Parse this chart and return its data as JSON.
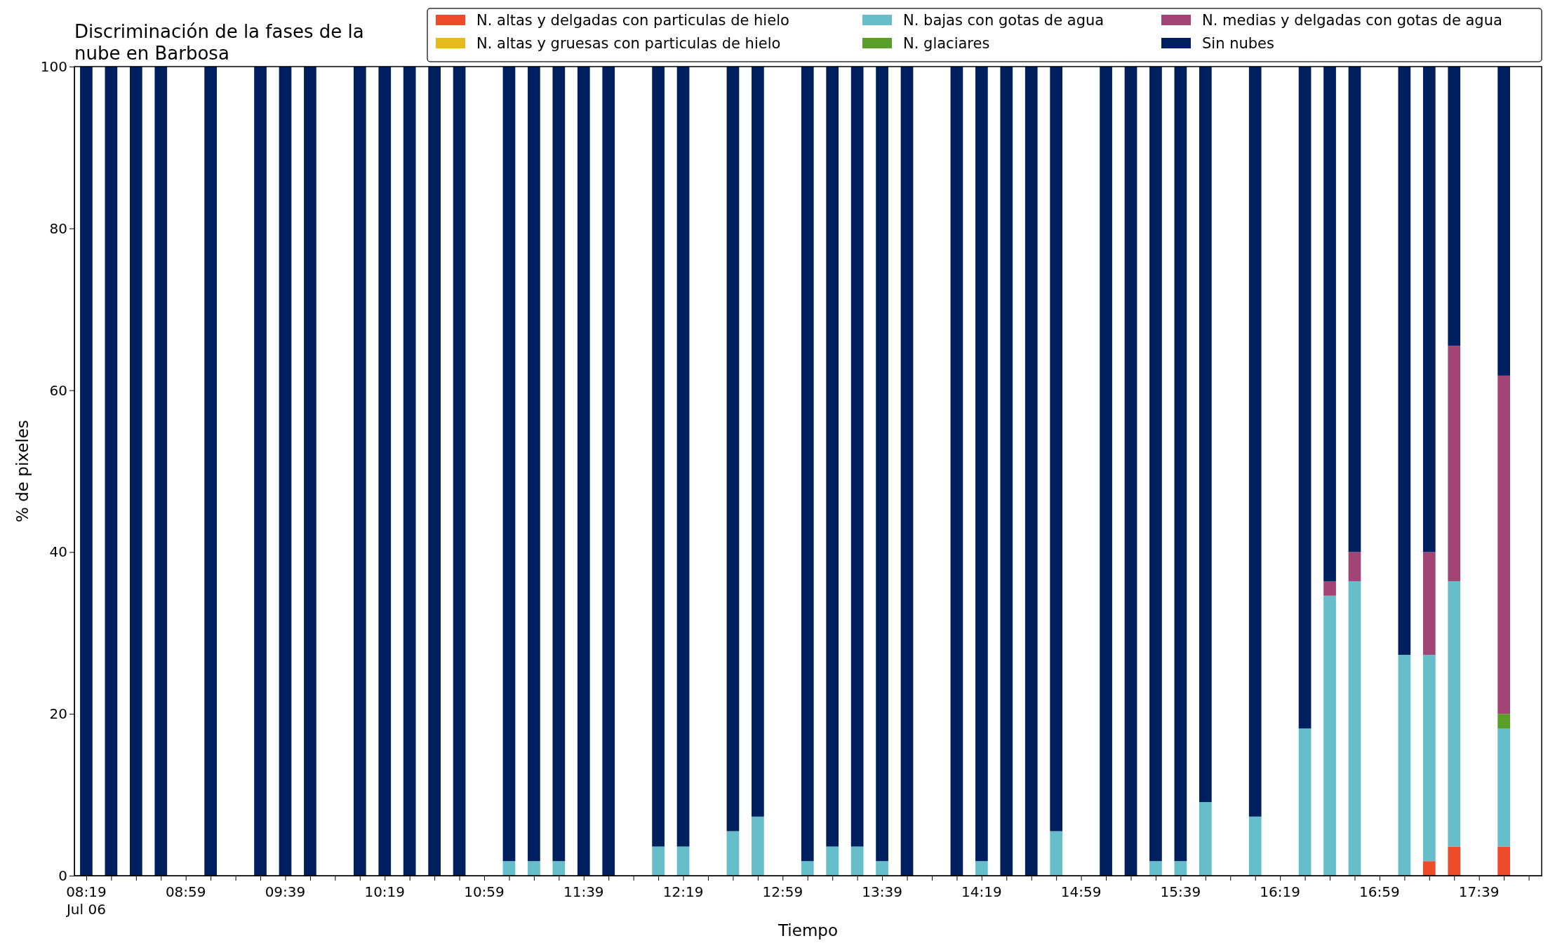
{
  "chart_data": {
    "type": "bar",
    "stacked": true,
    "title": "Discriminación de la fases de la\nnube en Barbosa",
    "xlabel": "Tiempo",
    "ylabel": "% de pixeles",
    "x": [
      8.3167,
      8.4833,
      8.65,
      8.8167,
      9.15,
      9.4833,
      9.65,
      9.8167,
      10.15,
      10.3167,
      10.4833,
      10.65,
      10.8167,
      11.15,
      11.3167,
      11.4833,
      11.65,
      11.8167,
      12.15,
      12.3167,
      12.65,
      12.8167,
      13.15,
      13.3167,
      13.4833,
      13.65,
      13.8167,
      14.15,
      14.3167,
      14.4833,
      14.65,
      14.8167,
      15.15,
      15.3167,
      15.4833,
      15.65,
      15.8167,
      16.15,
      16.4833,
      16.65,
      16.8167,
      17.15,
      17.3167,
      17.4833,
      17.8167
    ],
    "series": [
      {
        "name": "N. altas y delgadas con particulas de hielo",
        "color": "#ee4b2b",
        "values": [
          0,
          0,
          0,
          0,
          0,
          0,
          0,
          0,
          0,
          0,
          0,
          0,
          0,
          0,
          0,
          0,
          0,
          0,
          0,
          0,
          0,
          0,
          0,
          0,
          0,
          0,
          0,
          0,
          0,
          0,
          0,
          0,
          0,
          0,
          0,
          0,
          0,
          0,
          0,
          0,
          0,
          0,
          1.8,
          3.6,
          3.6
        ]
      },
      {
        "name": "N. altas y gruesas con particulas de hielo",
        "color": "#e6b91e",
        "values": [
          0,
          0,
          0,
          0,
          0,
          0,
          0,
          0,
          0,
          0,
          0,
          0,
          0,
          0,
          0,
          0,
          0,
          0,
          0,
          0,
          0,
          0,
          0,
          0,
          0,
          0,
          0,
          0,
          0,
          0,
          0,
          0,
          0,
          0,
          0,
          0,
          0,
          0,
          0,
          0,
          0,
          0,
          0,
          0,
          0
        ]
      },
      {
        "name": "N. bajas con gotas de agua",
        "color": "#65bec9",
        "values": [
          0,
          0,
          0,
          0,
          0,
          0,
          0,
          0,
          0,
          0,
          0,
          0,
          0,
          1.8,
          1.8,
          1.8,
          0,
          0,
          3.6,
          3.6,
          5.5,
          7.3,
          1.8,
          3.6,
          3.6,
          1.8,
          0,
          0,
          1.8,
          0,
          0,
          5.5,
          0,
          0,
          1.8,
          1.8,
          9.1,
          7.3,
          18.2,
          34.6,
          36.4,
          27.3,
          25.5,
          32.8,
          14.6
        ]
      },
      {
        "name": "N. glaciares",
        "color": "#5a9e2a",
        "values": [
          0,
          0,
          0,
          0,
          0,
          0,
          0,
          0,
          0,
          0,
          0,
          0,
          0,
          0,
          0,
          0,
          0,
          0,
          0,
          0,
          0,
          0,
          0,
          0,
          0,
          0,
          0,
          0,
          0,
          0,
          0,
          0,
          0,
          0,
          0,
          0,
          0,
          0,
          0,
          0,
          0,
          0,
          0,
          0,
          1.8
        ]
      },
      {
        "name": "N. medias y delgadas con gotas de agua",
        "color": "#a24576",
        "values": [
          0,
          0,
          0,
          0,
          0,
          0,
          0,
          0,
          0,
          0,
          0,
          0,
          0,
          0,
          0,
          0,
          0,
          0,
          0,
          0,
          0,
          0,
          0,
          0,
          0,
          0,
          0,
          0,
          0,
          0,
          0,
          0,
          0,
          0,
          0,
          0,
          0,
          0,
          0,
          1.8,
          3.6,
          0,
          12.7,
          29.1,
          41.8
        ]
      },
      {
        "name": "Sin nubes",
        "color": "#001f5e",
        "values": [
          100,
          100,
          100,
          100,
          100,
          100,
          100,
          100,
          100,
          100,
          100,
          100,
          100,
          98.2,
          98.2,
          98.2,
          100,
          100,
          96.4,
          96.4,
          94.5,
          92.7,
          98.2,
          96.4,
          96.4,
          98.2,
          100,
          100,
          98.2,
          100,
          100,
          94.5,
          100,
          100,
          98.2,
          98.2,
          90.9,
          92.7,
          81.8,
          63.6,
          60,
          72.7,
          60,
          34.5,
          38.2
        ]
      }
    ],
    "xlim": [
      8.237,
      18.07
    ],
    "xticks": [
      {
        "value": 8.3167,
        "label": "08:19\nJul 06"
      },
      {
        "value": 8.4833,
        "label": null
      },
      {
        "value": 8.65,
        "label": null
      },
      {
        "value": 8.8167,
        "label": null
      },
      {
        "value": 8.9833,
        "label": "08:59"
      },
      {
        "value": 9.15,
        "label": null
      },
      {
        "value": 9.3167,
        "label": null
      },
      {
        "value": 9.4833,
        "label": null
      },
      {
        "value": 9.65,
        "label": "09:39"
      },
      {
        "value": 9.8167,
        "label": null
      },
      {
        "value": 9.9833,
        "label": null
      },
      {
        "value": 10.15,
        "label": null
      },
      {
        "value": 10.3167,
        "label": "10:19"
      },
      {
        "value": 10.4833,
        "label": null
      },
      {
        "value": 10.65,
        "label": null
      },
      {
        "value": 10.8167,
        "label": null
      },
      {
        "value": 10.9833,
        "label": "10:59"
      },
      {
        "value": 11.15,
        "label": null
      },
      {
        "value": 11.3167,
        "label": null
      },
      {
        "value": 11.4833,
        "label": null
      },
      {
        "value": 11.65,
        "label": "11:39"
      },
      {
        "value": 11.8167,
        "label": null
      },
      {
        "value": 11.9833,
        "label": null
      },
      {
        "value": 12.15,
        "label": null
      },
      {
        "value": 12.3167,
        "label": "12:19"
      },
      {
        "value": 12.4833,
        "label": null
      },
      {
        "value": 12.65,
        "label": null
      },
      {
        "value": 12.8167,
        "label": null
      },
      {
        "value": 12.9833,
        "label": "12:59"
      },
      {
        "value": 13.15,
        "label": null
      },
      {
        "value": 13.3167,
        "label": null
      },
      {
        "value": 13.4833,
        "label": null
      },
      {
        "value": 13.65,
        "label": "13:39"
      },
      {
        "value": 13.8167,
        "label": null
      },
      {
        "value": 13.9833,
        "label": null
      },
      {
        "value": 14.15,
        "label": null
      },
      {
        "value": 14.3167,
        "label": "14:19"
      },
      {
        "value": 14.4833,
        "label": null
      },
      {
        "value": 14.65,
        "label": null
      },
      {
        "value": 14.8167,
        "label": null
      },
      {
        "value": 14.9833,
        "label": "14:59"
      },
      {
        "value": 15.15,
        "label": null
      },
      {
        "value": 15.3167,
        "label": null
      },
      {
        "value": 15.4833,
        "label": null
      },
      {
        "value": 15.65,
        "label": "15:39"
      },
      {
        "value": 15.8167,
        "label": null
      },
      {
        "value": 15.9833,
        "label": null
      },
      {
        "value": 16.15,
        "label": null
      },
      {
        "value": 16.3167,
        "label": "16:19"
      },
      {
        "value": 16.4833,
        "label": null
      },
      {
        "value": 16.65,
        "label": null
      },
      {
        "value": 16.8167,
        "label": null
      },
      {
        "value": 16.9833,
        "label": "16:59"
      },
      {
        "value": 17.15,
        "label": null
      },
      {
        "value": 17.3167,
        "label": null
      },
      {
        "value": 17.4833,
        "label": null
      },
      {
        "value": 17.65,
        "label": "17:39"
      },
      {
        "value": 17.8167,
        "label": null
      },
      {
        "value": 17.9833,
        "label": null
      }
    ],
    "ylim": [
      0,
      100
    ],
    "yticks": [
      0,
      20,
      40,
      60,
      80,
      100
    ],
    "legend": "top right"
  }
}
